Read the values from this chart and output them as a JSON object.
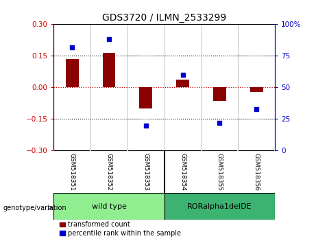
{
  "title": "GDS3720 / ILMN_2533299",
  "samples": [
    "GSM518351",
    "GSM518352",
    "GSM518353",
    "GSM518354",
    "GSM518355",
    "GSM518356"
  ],
  "red_bars": [
    0.135,
    0.165,
    -0.1,
    0.038,
    -0.065,
    -0.022
  ],
  "blue_dots": [
    82,
    88,
    20,
    60,
    22,
    33
  ],
  "ylim_left": [
    -0.3,
    0.3
  ],
  "ylim_right": [
    0,
    100
  ],
  "yticks_left": [
    -0.3,
    -0.15,
    0,
    0.15,
    0.3
  ],
  "yticks_right": [
    0,
    25,
    50,
    75,
    100
  ],
  "hlines_dotted": [
    0.15,
    -0.15
  ],
  "hline_zero_color": "#cc0000",
  "bar_color": "#8B0000",
  "dot_color": "#0000cc",
  "background_color": "#ffffff",
  "left_axis_color": "#cc0000",
  "right_axis_color": "#0000cc",
  "bar_width": 0.35,
  "group_wt_label": "wild type",
  "group_ror_label": "RORalpha1delDE",
  "group_wt_color": "#90EE90",
  "group_ror_color": "#3CB371",
  "sample_bg_color": "#c8c8c8",
  "legend_red_label": "transformed count",
  "legend_blue_label": "percentile rank within the sample",
  "genotype_label": "genotype/variation"
}
